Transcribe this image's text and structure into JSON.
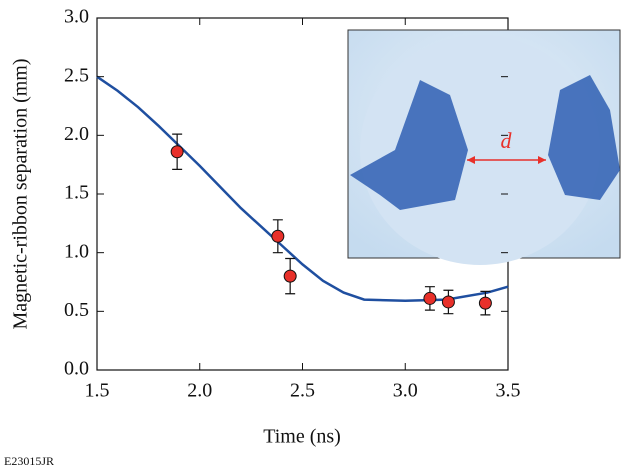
{
  "chart_data": {
    "type": "scatter",
    "ylabel": "Magnetic-ribbon separation (mm)",
    "xlabel": "Time (ns)",
    "xlim": [
      1.5,
      3.5
    ],
    "ylim": [
      0,
      3
    ],
    "xticks": [
      1.5,
      {
        "value": 2,
        "label": "2.0"
      },
      2.5,
      {
        "value": 3,
        "label": "3.0"
      },
      3.5
    ],
    "yticks": [
      {
        "value": 0,
        "label": "0.0"
      },
      0.5,
      {
        "value": 1,
        "label": "1.0"
      },
      1.5,
      {
        "value": 2,
        "label": "2.0"
      },
      2.5,
      {
        "value": 3,
        "label": "3.0"
      }
    ],
    "points": {
      "color": "#e8302a",
      "x": [
        1.89,
        2.38,
        2.44,
        3.12,
        3.21,
        3.39
      ],
      "values": [
        1.86,
        1.14,
        0.8,
        0.61,
        0.58,
        0.57
      ],
      "errors": [
        0.15,
        0.14,
        0.15,
        0.1,
        0.1,
        0.1
      ]
    },
    "curve": {
      "color": "#1f4fa0",
      "x": [
        1.5,
        1.6,
        1.7,
        1.8,
        1.9,
        2.0,
        2.1,
        2.2,
        2.3,
        2.4,
        2.5,
        2.6,
        2.7,
        2.8,
        3.0,
        3.2,
        3.4,
        3.5
      ],
      "values": [
        2.5,
        2.38,
        2.24,
        2.08,
        1.91,
        1.74,
        1.56,
        1.38,
        1.22,
        1.06,
        0.9,
        0.76,
        0.66,
        0.6,
        0.59,
        0.6,
        0.66,
        0.71
      ]
    },
    "inset_label": "d",
    "footnote": "E23015JR"
  }
}
